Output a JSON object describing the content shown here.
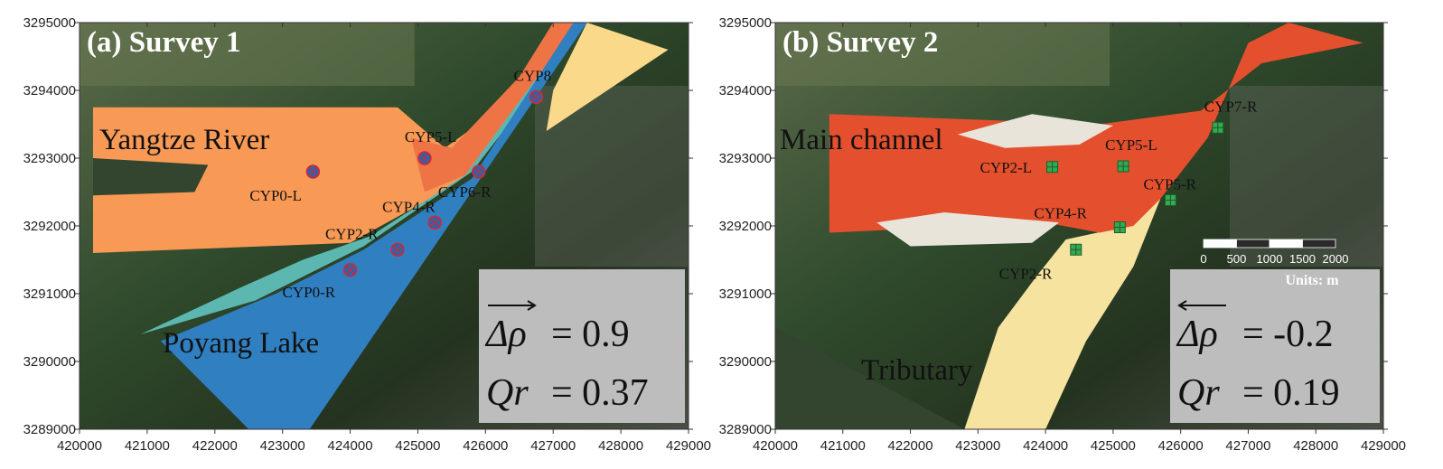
{
  "figure": {
    "panels": [
      {
        "title": "(a) Survey 1",
        "region_labels": [
          "Yangtze River",
          "Poyang Lake"
        ],
        "stats": {
          "delta_rho_label": "Δρ",
          "delta_rho_arrow": "right",
          "delta_rho_value": "= 0.9",
          "qr_label": "Qr",
          "qr_value": "= 0.37"
        },
        "stations": [
          {
            "name": "CYP0-L",
            "x": 423450,
            "y": 3292800,
            "marker": "circle-cross"
          },
          {
            "name": "CYP5-L",
            "x": 425100,
            "y": 3293000,
            "marker": "circle-cross"
          },
          {
            "name": "CYP6-R",
            "x": 425900,
            "y": 3292800,
            "marker": "circle-cross"
          },
          {
            "name": "CYP8",
            "x": 426750,
            "y": 3293900,
            "marker": "circle-cross"
          },
          {
            "name": "CYP4-R",
            "x": 425250,
            "y": 3292050,
            "marker": "circle-cross"
          },
          {
            "name": "CYP2-R",
            "x": 424700,
            "y": 3291650,
            "marker": "circle-cross"
          },
          {
            "name": "CYP0-R",
            "x": 424000,
            "y": 3291350,
            "marker": "circle-cross"
          }
        ]
      },
      {
        "title": "(b) Survey 2",
        "region_labels": [
          "Main channel",
          "Tributary"
        ],
        "stats": {
          "delta_rho_label": "Δρ",
          "delta_rho_arrow": "left",
          "delta_rho_value": "= -0.2",
          "qr_label": "Qr",
          "qr_value": "= 0.19"
        },
        "stations": [
          {
            "name": "CYP7-R",
            "x": 426550,
            "y": 3293450,
            "marker": "square-grid"
          },
          {
            "name": "CYP5-L",
            "x": 425150,
            "y": 3292880,
            "marker": "square-grid"
          },
          {
            "name": "CYP2-L",
            "x": 424100,
            "y": 3292870,
            "marker": "square-grid"
          },
          {
            "name": "CYP5-R",
            "x": 425850,
            "y": 3292380,
            "marker": "square-grid"
          },
          {
            "name": "CYP4-R",
            "x": 425100,
            "y": 3291980,
            "marker": "square-grid"
          },
          {
            "name": "CYP2-R",
            "x": 424450,
            "y": 3291650,
            "marker": "square-grid"
          }
        ],
        "scale_bar": {
          "ticks": [
            "0",
            "500",
            "1000",
            "1500",
            "2000"
          ],
          "units": "Units: m"
        }
      }
    ],
    "x_ticks": [
      "420000",
      "421000",
      "422000",
      "423000",
      "424000",
      "425000",
      "426000",
      "427000",
      "428000",
      "429000"
    ],
    "y_ticks": [
      "3295000",
      "3294000",
      "3293000",
      "3292000",
      "3291000",
      "3290000",
      "3289000"
    ],
    "x_range": [
      420000,
      429000
    ],
    "y_range": [
      3289000,
      3295000
    ],
    "colors": {
      "orange": "#f89a55",
      "dark_orange": "#ee7446",
      "blue": "#2f7fc1",
      "teal": "#5bb7b0",
      "yellow": "#fbd98a",
      "red": "#e4502e",
      "pale_yellow": "#f7e3a0",
      "land": "#33442f",
      "marker_fill_a": "#2c63b0",
      "marker_edge_a": "#d9262b",
      "marker_fill_b": "#34a853",
      "stats_box": "#bdbdbd"
    }
  }
}
